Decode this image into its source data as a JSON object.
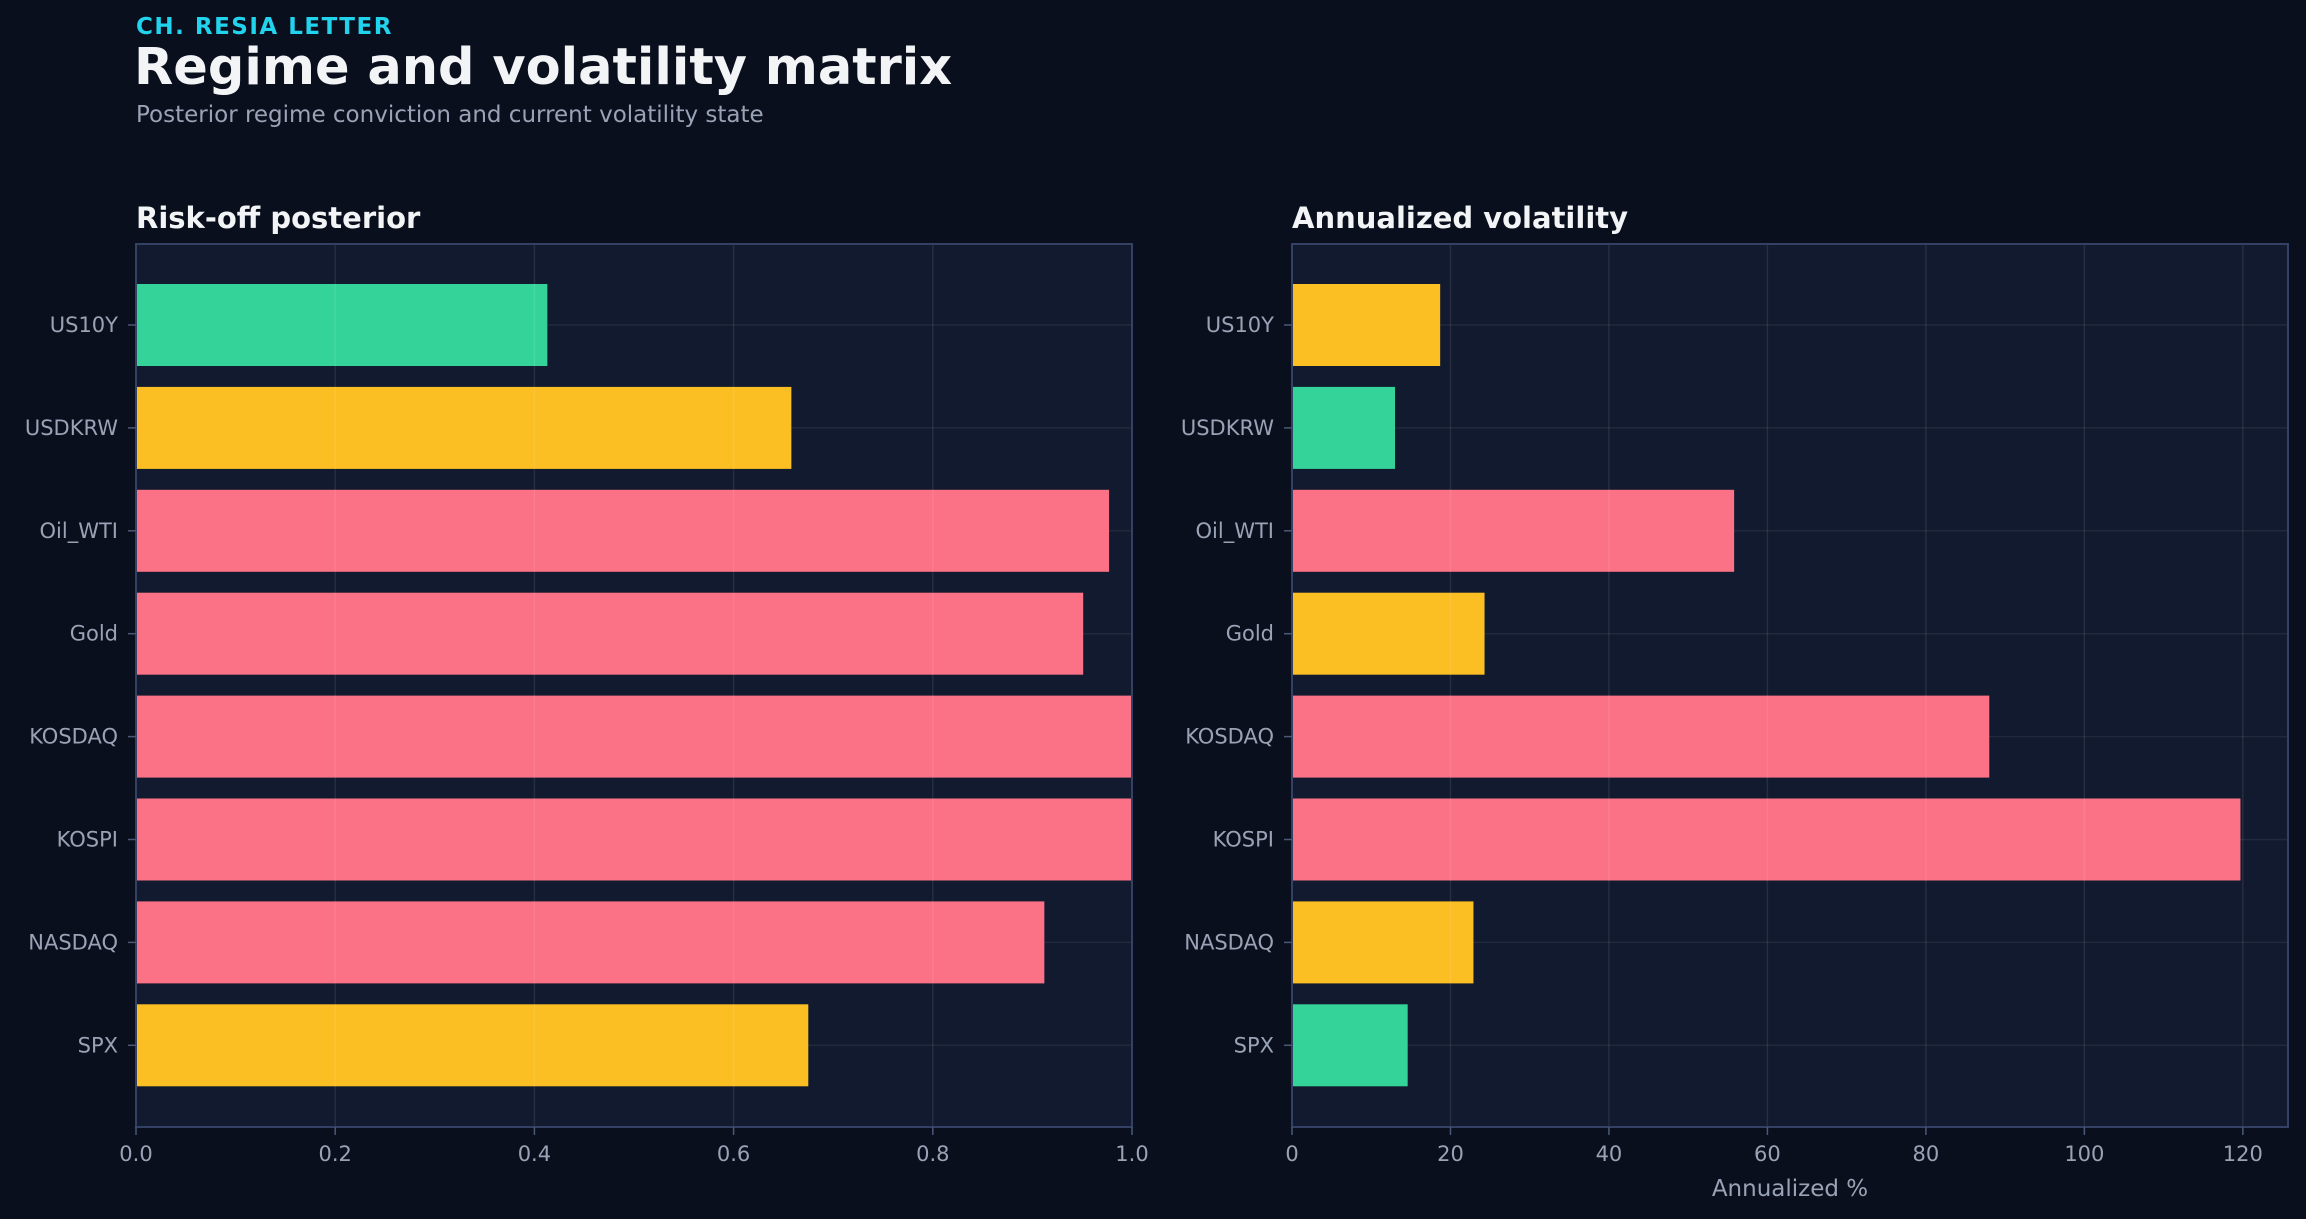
{
  "header": {
    "kicker": "CH. RESIA LETTER",
    "title": "Regime and volatility matrix",
    "subtitle": "Posterior regime conviction and current volatility state"
  },
  "colors": {
    "background": "#0a0f1e",
    "panel": "#111a2e",
    "green": "#34d399",
    "amber": "#fbbf24",
    "red": "#fb7185"
  },
  "chart_data": [
    {
      "type": "bar",
      "orientation": "horizontal",
      "title": "Risk-off posterior",
      "xlabel": "",
      "categories": [
        "US10Y",
        "USDKRW",
        "Oil_WTI",
        "Gold",
        "KOSDAQ",
        "KOSPI",
        "NASDAQ",
        "SPX"
      ],
      "values": [
        0.413,
        0.658,
        0.977,
        0.951,
        1.0,
        1.0,
        0.912,
        0.675
      ],
      "bar_colors": [
        "green",
        "amber",
        "red",
        "red",
        "red",
        "red",
        "red",
        "amber"
      ],
      "xlim": [
        0,
        1.0
      ],
      "xticks": [
        0.0,
        0.2,
        0.4,
        0.6,
        0.8,
        1.0
      ],
      "xtick_labels": [
        "0.0",
        "0.2",
        "0.4",
        "0.6",
        "0.8",
        "1.0"
      ],
      "grid": true
    },
    {
      "type": "bar",
      "orientation": "horizontal",
      "title": "Annualized volatility",
      "xlabel": "Annualized %",
      "categories": [
        "US10Y",
        "USDKRW",
        "Oil_WTI",
        "Gold",
        "KOSDAQ",
        "KOSPI",
        "NASDAQ",
        "SPX"
      ],
      "values": [
        18.7,
        13.0,
        55.8,
        24.3,
        88.0,
        119.7,
        22.9,
        14.6
      ],
      "bar_colors": [
        "amber",
        "green",
        "red",
        "amber",
        "red",
        "red",
        "amber",
        "green"
      ],
      "xlim": [
        0,
        125.7
      ],
      "xticks": [
        0,
        20,
        40,
        60,
        80,
        100,
        120
      ],
      "xtick_labels": [
        "0",
        "20",
        "40",
        "60",
        "80",
        "100",
        "120"
      ],
      "grid": true
    }
  ]
}
